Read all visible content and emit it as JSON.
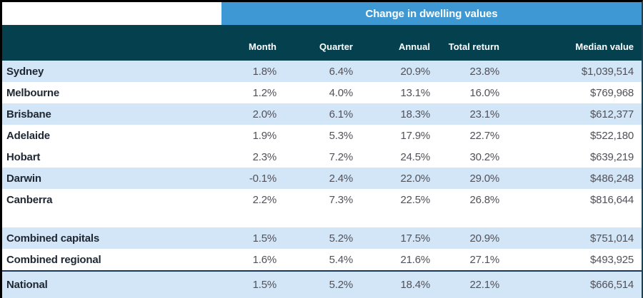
{
  "banner": {
    "title": "Change in dwelling values"
  },
  "chart_data": {
    "type": "table",
    "title": "Change in dwelling values",
    "columns": [
      "Month",
      "Quarter",
      "Annual",
      "Total return",
      "Median value"
    ],
    "rows": [
      {
        "label": "Sydney",
        "values": [
          "1.8%",
          "6.4%",
          "20.9%",
          "23.8%",
          "$1,039,514"
        ],
        "shaded": true
      },
      {
        "label": "Melbourne",
        "values": [
          "1.2%",
          "4.0%",
          "13.1%",
          "16.0%",
          "$769,968"
        ],
        "shaded": false
      },
      {
        "label": "Brisbane",
        "values": [
          "2.0%",
          "6.1%",
          "18.3%",
          "23.1%",
          "$612,377"
        ],
        "shaded": true
      },
      {
        "label": "Adelaide",
        "values": [
          "1.9%",
          "5.3%",
          "17.9%",
          "22.7%",
          "$522,180"
        ],
        "shaded": false
      },
      {
        "label": "Hobart",
        "values": [
          "2.3%",
          "7.2%",
          "24.5%",
          "30.2%",
          "$639,219"
        ],
        "shaded": false
      },
      {
        "label": "Darwin",
        "values": [
          "-0.1%",
          "2.4%",
          "22.0%",
          "29.0%",
          "$486,248"
        ],
        "shaded": true
      },
      {
        "label": "Canberra",
        "values": [
          "2.2%",
          "7.3%",
          "22.5%",
          "26.8%",
          "$816,644"
        ],
        "shaded": false
      },
      {
        "label": "Combined capitals",
        "values": [
          "1.5%",
          "5.2%",
          "17.5%",
          "20.9%",
          "$751,014"
        ],
        "shaded": true,
        "spacer_before": true
      },
      {
        "label": "Combined regional",
        "values": [
          "1.6%",
          "5.4%",
          "21.6%",
          "27.1%",
          "$493,925"
        ],
        "shaded": false
      },
      {
        "label": "National",
        "values": [
          "1.5%",
          "5.2%",
          "18.4%",
          "22.1%",
          "$666,514"
        ],
        "shaded": true,
        "separator_before": true,
        "fill_remaining": true
      }
    ]
  },
  "colors": {
    "banner_blue": "#3D98D3",
    "header_teal": "#05404F",
    "row_shade_blue": "#D3E6F7",
    "row_white": "#FFFFFF",
    "separator_navy": "#17375E",
    "border_black": "#000000",
    "header_text": "#FFFFFF",
    "label_text": "#1F2733",
    "value_text": "#515159"
  }
}
